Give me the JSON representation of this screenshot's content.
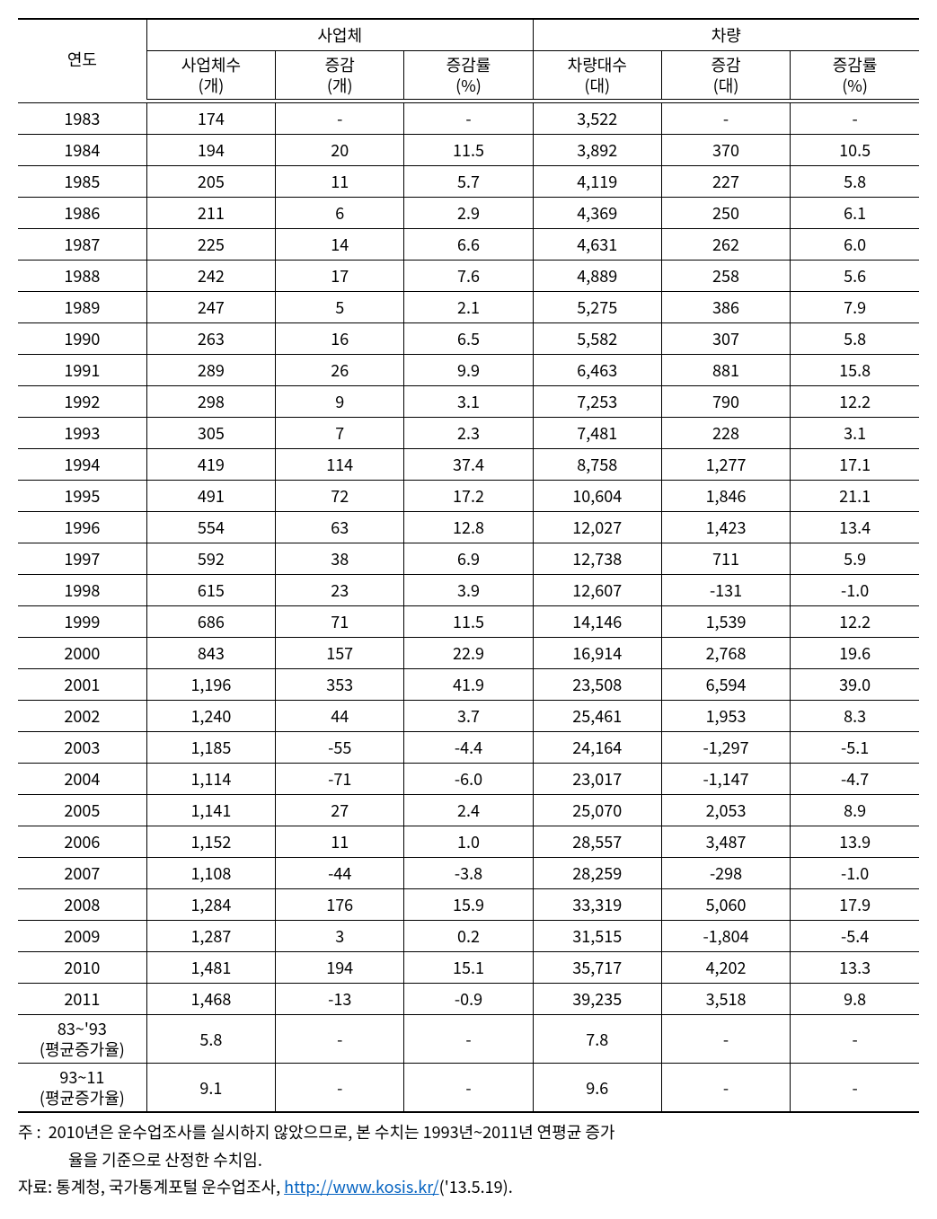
{
  "table": {
    "type": "table",
    "background_color": "#ffffff",
    "text_color": "#000000",
    "border_color": "#000000",
    "font_size_pt": 14,
    "header_font_size_pt": 14,
    "column_widths_pct": [
      14.3,
      14.3,
      14.3,
      14.3,
      14.3,
      14.3,
      14.3
    ],
    "header": {
      "year": "연도",
      "group_a": "사업체",
      "group_b": "차량",
      "sub_a": [
        {
          "line1": "사업체수",
          "line2": "(개)"
        },
        {
          "line1": "증감",
          "line2": "(개)"
        },
        {
          "line1": "증감률",
          "line2": "(%)"
        }
      ],
      "sub_b": [
        {
          "line1": "차량대수",
          "line2": "(대)"
        },
        {
          "line1": "증감",
          "line2": "(대)"
        },
        {
          "line1": "증감률",
          "line2": "(%)"
        }
      ]
    },
    "rows": [
      {
        "year": "1983",
        "a1": "174",
        "a2": "-",
        "a3": "-",
        "b1": "3,522",
        "b2": "-",
        "b3": "-"
      },
      {
        "year": "1984",
        "a1": "194",
        "a2": "20",
        "a3": "11.5",
        "b1": "3,892",
        "b2": "370",
        "b3": "10.5"
      },
      {
        "year": "1985",
        "a1": "205",
        "a2": "11",
        "a3": "5.7",
        "b1": "4,119",
        "b2": "227",
        "b3": "5.8"
      },
      {
        "year": "1986",
        "a1": "211",
        "a2": "6",
        "a3": "2.9",
        "b1": "4,369",
        "b2": "250",
        "b3": "6.1"
      },
      {
        "year": "1987",
        "a1": "225",
        "a2": "14",
        "a3": "6.6",
        "b1": "4,631",
        "b2": "262",
        "b3": "6.0"
      },
      {
        "year": "1988",
        "a1": "242",
        "a2": "17",
        "a3": "7.6",
        "b1": "4,889",
        "b2": "258",
        "b3": "5.6"
      },
      {
        "year": "1989",
        "a1": "247",
        "a2": "5",
        "a3": "2.1",
        "b1": "5,275",
        "b2": "386",
        "b3": "7.9"
      },
      {
        "year": "1990",
        "a1": "263",
        "a2": "16",
        "a3": "6.5",
        "b1": "5,582",
        "b2": "307",
        "b3": "5.8"
      },
      {
        "year": "1991",
        "a1": "289",
        "a2": "26",
        "a3": "9.9",
        "b1": "6,463",
        "b2": "881",
        "b3": "15.8"
      },
      {
        "year": "1992",
        "a1": "298",
        "a2": "9",
        "a3": "3.1",
        "b1": "7,253",
        "b2": "790",
        "b3": "12.2"
      },
      {
        "year": "1993",
        "a1": "305",
        "a2": "7",
        "a3": "2.3",
        "b1": "7,481",
        "b2": "228",
        "b3": "3.1"
      },
      {
        "year": "1994",
        "a1": "419",
        "a2": "114",
        "a3": "37.4",
        "b1": "8,758",
        "b2": "1,277",
        "b3": "17.1"
      },
      {
        "year": "1995",
        "a1": "491",
        "a2": "72",
        "a3": "17.2",
        "b1": "10,604",
        "b2": "1,846",
        "b3": "21.1"
      },
      {
        "year": "1996",
        "a1": "554",
        "a2": "63",
        "a3": "12.8",
        "b1": "12,027",
        "b2": "1,423",
        "b3": "13.4"
      },
      {
        "year": "1997",
        "a1": "592",
        "a2": "38",
        "a3": "6.9",
        "b1": "12,738",
        "b2": "711",
        "b3": "5.9"
      },
      {
        "year": "1998",
        "a1": "615",
        "a2": "23",
        "a3": "3.9",
        "b1": "12,607",
        "b2": "-131",
        "b3": "-1.0"
      },
      {
        "year": "1999",
        "a1": "686",
        "a2": "71",
        "a3": "11.5",
        "b1": "14,146",
        "b2": "1,539",
        "b3": "12.2"
      },
      {
        "year": "2000",
        "a1": "843",
        "a2": "157",
        "a3": "22.9",
        "b1": "16,914",
        "b2": "2,768",
        "b3": "19.6"
      },
      {
        "year": "2001",
        "a1": "1,196",
        "a2": "353",
        "a3": "41.9",
        "b1": "23,508",
        "b2": "6,594",
        "b3": "39.0"
      },
      {
        "year": "2002",
        "a1": "1,240",
        "a2": "44",
        "a3": "3.7",
        "b1": "25,461",
        "b2": "1,953",
        "b3": "8.3"
      },
      {
        "year": "2003",
        "a1": "1,185",
        "a2": "-55",
        "a3": "-4.4",
        "b1": "24,164",
        "b2": "-1,297",
        "b3": "-5.1"
      },
      {
        "year": "2004",
        "a1": "1,114",
        "a2": "-71",
        "a3": "-6.0",
        "b1": "23,017",
        "b2": "-1,147",
        "b3": "-4.7"
      },
      {
        "year": "2005",
        "a1": "1,141",
        "a2": "27",
        "a3": "2.4",
        "b1": "25,070",
        "b2": "2,053",
        "b3": "8.9"
      },
      {
        "year": "2006",
        "a1": "1,152",
        "a2": "11",
        "a3": "1.0",
        "b1": "28,557",
        "b2": "3,487",
        "b3": "13.9"
      },
      {
        "year": "2007",
        "a1": "1,108",
        "a2": "-44",
        "a3": "-3.8",
        "b1": "28,259",
        "b2": "-298",
        "b3": "-1.0"
      },
      {
        "year": "2008",
        "a1": "1,284",
        "a2": "176",
        "a3": "15.9",
        "b1": "33,319",
        "b2": "5,060",
        "b3": "17.9"
      },
      {
        "year": "2009",
        "a1": "1,287",
        "a2": "3",
        "a3": "0.2",
        "b1": "31,515",
        "b2": "-1,804",
        "b3": "-5.4"
      },
      {
        "year": "2010",
        "a1": "1,481",
        "a2": "194",
        "a3": "15.1",
        "b1": "35,717",
        "b2": "4,202",
        "b3": "13.3"
      },
      {
        "year": "2011",
        "a1": "1,468",
        "a2": "-13",
        "a3": "-0.9",
        "b1": "39,235",
        "b2": "3,518",
        "b3": "9.8"
      }
    ],
    "summary_rows": [
      {
        "year_line1": "83~'93",
        "year_line2": "(평균증가율)",
        "a1": "5.8",
        "a2": "-",
        "a3": "-",
        "b1": "7.8",
        "b2": "-",
        "b3": "-"
      },
      {
        "year_line1": "93~11",
        "year_line2": "(평균증가율)",
        "a1": "9.1",
        "a2": "-",
        "a3": "-",
        "b1": "9.6",
        "b2": "-",
        "b3": "-"
      }
    ]
  },
  "notes": {
    "note_label": "주 :",
    "note_line1": "2010년은 운수업조사를 실시하지 않았으므로, 본 수치는 1993년~2011년 연평균 증가",
    "note_line2": "율을 기준으로 산정한 수치임.",
    "source_label": "자료:",
    "source_text": "통계청, 국가통계포털 운수업조사,",
    "source_link_text": "http://www.kosis.kr/",
    "source_suffix": "('13.5.19).",
    "link_color": "#0563c1"
  }
}
